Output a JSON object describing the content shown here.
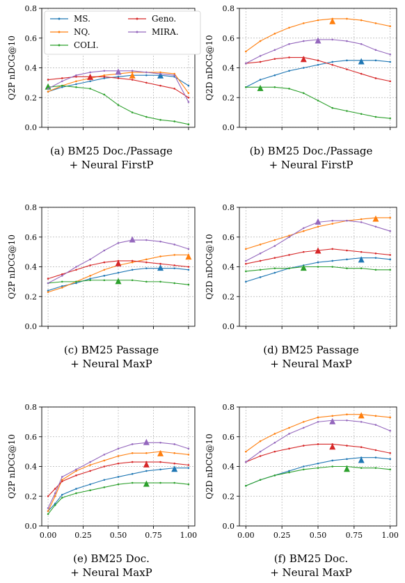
{
  "legend": {
    "entries": [
      {
        "name": "MS.",
        "color": "#1f77b4"
      },
      {
        "name": "NQ.",
        "color": "#ff7f0e"
      },
      {
        "name": "COLI.",
        "color": "#2ca02c"
      },
      {
        "name": "Geno.",
        "color": "#d62728"
      },
      {
        "name": "MIRA.",
        "color": "#9467bd"
      }
    ]
  },
  "chart_data": [
    {
      "type": "line",
      "caption_line1": "(a) BM25 Doc./Passage",
      "caption_line2": "+ Neural FirstP",
      "ylabel": "Q2P nDCG@10",
      "xlim": [
        0,
        1
      ],
      "ylim": [
        0,
        0.8
      ],
      "yticks": [
        "0.0",
        "0.2",
        "0.4",
        "0.6",
        "0.8"
      ],
      "xticks": [],
      "grid": true,
      "legend": "top-left",
      "x": [
        0,
        0.1,
        0.2,
        0.3,
        0.4,
        0.5,
        0.6,
        0.7,
        0.8,
        0.9,
        1.0
      ],
      "series": [
        {
          "name": "MS.",
          "values": [
            0.24,
            0.27,
            0.29,
            0.31,
            0.33,
            0.34,
            0.35,
            0.35,
            0.35,
            0.34,
            0.28
          ],
          "marker": {
            "x": 0.8,
            "y": 0.345
          }
        },
        {
          "name": "NQ.",
          "values": [
            0.24,
            0.28,
            0.31,
            0.33,
            0.35,
            0.36,
            0.37,
            0.37,
            0.37,
            0.36,
            0.23
          ],
          "marker": {
            "x": 0.6,
            "y": 0.345
          }
        },
        {
          "name": "COLI.",
          "values": [
            0.27,
            0.28,
            0.27,
            0.26,
            0.22,
            0.15,
            0.1,
            0.07,
            0.05,
            0.04,
            0.02
          ],
          "marker": {
            "x": 0.0,
            "y": 0.27
          }
        },
        {
          "name": "Geno.",
          "values": [
            0.32,
            0.33,
            0.34,
            0.34,
            0.34,
            0.33,
            0.32,
            0.3,
            0.28,
            0.26,
            0.2
          ],
          "marker": {
            "x": 0.3,
            "y": 0.335
          }
        },
        {
          "name": "MIRA.",
          "values": [
            0.26,
            0.31,
            0.35,
            0.37,
            0.38,
            0.38,
            0.38,
            0.37,
            0.36,
            0.35,
            0.17
          ],
          "marker": {
            "x": 0.5,
            "y": 0.37
          }
        }
      ]
    },
    {
      "type": "line",
      "caption_line1": "(b) BM25 Doc./Passage",
      "caption_line2": "+ Neural FirstP",
      "ylabel": "Q2D nDCG@10",
      "xlim": [
        0,
        1
      ],
      "ylim": [
        0,
        0.8
      ],
      "yticks": [
        "0.0",
        "0.2",
        "0.4",
        "0.6",
        "0.8"
      ],
      "xticks": [],
      "grid": true,
      "x": [
        0,
        0.1,
        0.2,
        0.3,
        0.4,
        0.5,
        0.6,
        0.7,
        0.8,
        0.9,
        1.0
      ],
      "series": [
        {
          "name": "MS.",
          "values": [
            0.27,
            0.32,
            0.35,
            0.38,
            0.4,
            0.42,
            0.44,
            0.45,
            0.45,
            0.45,
            0.44
          ],
          "marker": {
            "x": 0.8,
            "y": 0.44
          }
        },
        {
          "name": "NQ.",
          "values": [
            0.51,
            0.58,
            0.63,
            0.67,
            0.7,
            0.72,
            0.73,
            0.73,
            0.72,
            0.7,
            0.68
          ],
          "marker": {
            "x": 0.6,
            "y": 0.71
          }
        },
        {
          "name": "COLI.",
          "values": [
            0.27,
            0.27,
            0.27,
            0.26,
            0.23,
            0.18,
            0.13,
            0.11,
            0.09,
            0.07,
            0.06
          ],
          "marker": {
            "x": 0.1,
            "y": 0.26
          }
        },
        {
          "name": "Geno.",
          "values": [
            0.43,
            0.44,
            0.46,
            0.47,
            0.47,
            0.45,
            0.42,
            0.39,
            0.36,
            0.33,
            0.31
          ],
          "marker": {
            "x": 0.4,
            "y": 0.455
          }
        },
        {
          "name": "MIRA.",
          "values": [
            0.43,
            0.48,
            0.52,
            0.56,
            0.58,
            0.59,
            0.59,
            0.58,
            0.56,
            0.52,
            0.49
          ],
          "marker": {
            "x": 0.5,
            "y": 0.58
          }
        }
      ]
    },
    {
      "type": "line",
      "caption_line1": "(c) BM25 Passage",
      "caption_line2": "+ Neural MaxP",
      "ylabel": "Q2P nDCG@10",
      "xlim": [
        0,
        1
      ],
      "ylim": [
        0,
        0.8
      ],
      "yticks": [
        "0.0",
        "0.2",
        "0.4",
        "0.6",
        "0.8"
      ],
      "xticks": [],
      "grid": true,
      "x": [
        0,
        0.1,
        0.2,
        0.3,
        0.4,
        0.5,
        0.6,
        0.7,
        0.8,
        0.9,
        1.0
      ],
      "series": [
        {
          "name": "MS.",
          "values": [
            0.24,
            0.27,
            0.29,
            0.32,
            0.34,
            0.36,
            0.38,
            0.39,
            0.39,
            0.39,
            0.38
          ],
          "marker": {
            "x": 0.8,
            "y": 0.39
          }
        },
        {
          "name": "NQ.",
          "values": [
            0.23,
            0.26,
            0.3,
            0.34,
            0.38,
            0.41,
            0.43,
            0.45,
            0.47,
            0.48,
            0.48
          ],
          "marker": {
            "x": 1.0,
            "y": 0.465
          }
        },
        {
          "name": "COLI.",
          "values": [
            0.29,
            0.3,
            0.3,
            0.31,
            0.31,
            0.31,
            0.31,
            0.3,
            0.3,
            0.29,
            0.28
          ],
          "marker": {
            "x": 0.5,
            "y": 0.3
          }
        },
        {
          "name": "Geno.",
          "values": [
            0.32,
            0.35,
            0.38,
            0.41,
            0.43,
            0.44,
            0.44,
            0.43,
            0.42,
            0.41,
            0.4
          ],
          "marker": {
            "x": 0.5,
            "y": 0.42
          }
        },
        {
          "name": "MIRA.",
          "values": [
            0.29,
            0.34,
            0.4,
            0.45,
            0.51,
            0.56,
            0.58,
            0.58,
            0.57,
            0.55,
            0.52
          ],
          "marker": {
            "x": 0.6,
            "y": 0.58
          }
        }
      ]
    },
    {
      "type": "line",
      "caption_line1": "(d) BM25 Passage",
      "caption_line2": "+ Neural MaxP",
      "ylabel": "Q2D nDCG@10",
      "xlim": [
        0,
        1
      ],
      "ylim": [
        0,
        0.8
      ],
      "yticks": [
        "0.0",
        "0.2",
        "0.4",
        "0.6",
        "0.8"
      ],
      "xticks": [],
      "grid": true,
      "x": [
        0,
        0.1,
        0.2,
        0.3,
        0.4,
        0.5,
        0.6,
        0.7,
        0.8,
        0.9,
        1.0
      ],
      "series": [
        {
          "name": "MS.",
          "values": [
            0.3,
            0.33,
            0.36,
            0.39,
            0.41,
            0.43,
            0.44,
            0.45,
            0.46,
            0.46,
            0.45
          ],
          "marker": {
            "x": 0.8,
            "y": 0.445
          }
        },
        {
          "name": "NQ.",
          "values": [
            0.52,
            0.55,
            0.58,
            0.61,
            0.64,
            0.67,
            0.69,
            0.71,
            0.72,
            0.73,
            0.73
          ],
          "marker": {
            "x": 0.9,
            "y": 0.72
          }
        },
        {
          "name": "COLI.",
          "values": [
            0.37,
            0.38,
            0.39,
            0.39,
            0.4,
            0.4,
            0.4,
            0.39,
            0.39,
            0.38,
            0.38
          ],
          "marker": {
            "x": 0.4,
            "y": 0.39
          }
        },
        {
          "name": "Geno.",
          "values": [
            0.42,
            0.44,
            0.46,
            0.48,
            0.5,
            0.51,
            0.52,
            0.51,
            0.5,
            0.49,
            0.48
          ],
          "marker": {
            "x": 0.5,
            "y": 0.505
          }
        },
        {
          "name": "MIRA.",
          "values": [
            0.44,
            0.49,
            0.54,
            0.6,
            0.66,
            0.7,
            0.71,
            0.71,
            0.7,
            0.67,
            0.64
          ],
          "marker": {
            "x": 0.5,
            "y": 0.7
          }
        }
      ]
    },
    {
      "type": "line",
      "caption_line1": "(e) BM25 Doc.",
      "caption_line2": "+ Neural MaxP",
      "ylabel": "Q2P nDCG@10",
      "xlim": [
        0,
        1
      ],
      "ylim": [
        0,
        0.8
      ],
      "yticks": [
        "0.0",
        "0.2",
        "0.4",
        "0.6",
        "0.8"
      ],
      "xticks": [
        "0.00",
        "0.25",
        "0.50",
        "0.75",
        "1.00"
      ],
      "grid": true,
      "x": [
        0,
        0.05,
        0.1,
        0.2,
        0.3,
        0.4,
        0.5,
        0.6,
        0.7,
        0.8,
        0.9,
        1.0
      ],
      "series": [
        {
          "name": "MS.",
          "values": [
            0.1,
            0.15,
            0.21,
            0.25,
            0.28,
            0.31,
            0.33,
            0.35,
            0.37,
            0.38,
            0.39,
            0.39
          ],
          "marker": {
            "x": 0.9,
            "y": 0.38
          }
        },
        {
          "name": "NQ.",
          "values": [
            0.1,
            0.2,
            0.31,
            0.37,
            0.41,
            0.44,
            0.47,
            0.49,
            0.49,
            0.5,
            0.49,
            0.48
          ],
          "marker": {
            "x": 0.8,
            "y": 0.485
          }
        },
        {
          "name": "COLI.",
          "values": [
            0.08,
            0.14,
            0.19,
            0.22,
            0.24,
            0.26,
            0.28,
            0.29,
            0.29,
            0.29,
            0.29,
            0.28
          ],
          "marker": {
            "x": 0.7,
            "y": 0.28
          }
        },
        {
          "name": "Geno.",
          "values": [
            0.2,
            0.25,
            0.3,
            0.34,
            0.37,
            0.4,
            0.42,
            0.43,
            0.43,
            0.43,
            0.42,
            0.41
          ],
          "marker": {
            "x": 0.7,
            "y": 0.41
          }
        },
        {
          "name": "MIRA.",
          "values": [
            0.12,
            0.22,
            0.33,
            0.38,
            0.43,
            0.48,
            0.52,
            0.55,
            0.56,
            0.56,
            0.55,
            0.52
          ],
          "marker": {
            "x": 0.7,
            "y": 0.56
          }
        }
      ]
    },
    {
      "type": "line",
      "caption_line1": "(f) BM25 Doc.",
      "caption_line2": "+ Neural MaxP",
      "ylabel": "Q2D nDCG@10",
      "xlim": [
        0,
        1
      ],
      "ylim": [
        0,
        0.8
      ],
      "yticks": [
        "0.0",
        "0.2",
        "0.4",
        "0.6",
        "0.8"
      ],
      "xticks": [
        "0.00",
        "0.25",
        "0.50",
        "0.75",
        "1.00"
      ],
      "grid": true,
      "x": [
        0,
        0.1,
        0.2,
        0.3,
        0.4,
        0.5,
        0.6,
        0.7,
        0.8,
        0.9,
        1.0
      ],
      "series": [
        {
          "name": "MS.",
          "values": [
            0.27,
            0.31,
            0.34,
            0.37,
            0.4,
            0.42,
            0.44,
            0.45,
            0.46,
            0.46,
            0.45
          ],
          "marker": {
            "x": 0.8,
            "y": 0.44
          }
        },
        {
          "name": "NQ.",
          "values": [
            0.5,
            0.57,
            0.62,
            0.66,
            0.7,
            0.73,
            0.74,
            0.75,
            0.75,
            0.74,
            0.73
          ],
          "marker": {
            "x": 0.8,
            "y": 0.74
          }
        },
        {
          "name": "COLI.",
          "values": [
            0.27,
            0.31,
            0.34,
            0.36,
            0.38,
            0.39,
            0.4,
            0.4,
            0.39,
            0.39,
            0.38
          ],
          "marker": {
            "x": 0.7,
            "y": 0.38
          }
        },
        {
          "name": "Geno.",
          "values": [
            0.43,
            0.47,
            0.5,
            0.52,
            0.54,
            0.55,
            0.55,
            0.54,
            0.53,
            0.51,
            0.49
          ],
          "marker": {
            "x": 0.6,
            "y": 0.53
          }
        },
        {
          "name": "MIRA.",
          "values": [
            0.43,
            0.5,
            0.56,
            0.62,
            0.66,
            0.7,
            0.71,
            0.71,
            0.7,
            0.68,
            0.64
          ],
          "marker": {
            "x": 0.6,
            "y": 0.7
          }
        }
      ]
    }
  ]
}
